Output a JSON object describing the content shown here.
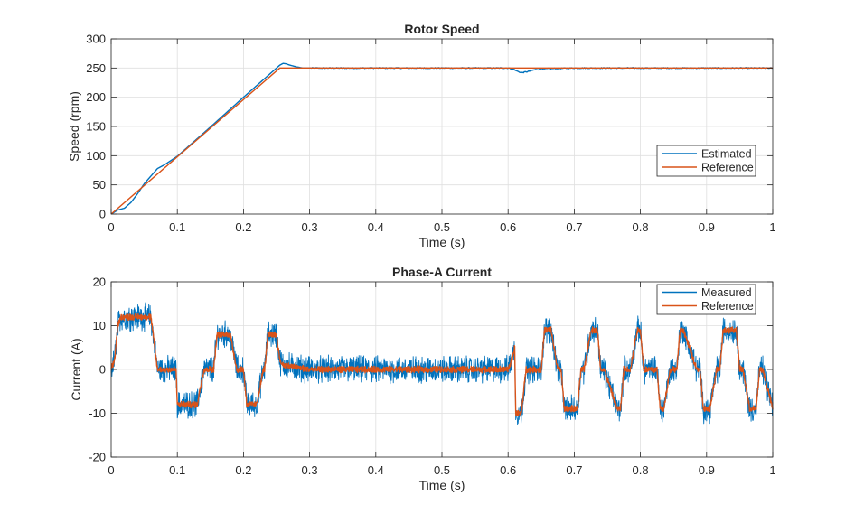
{
  "chart_data": [
    {
      "type": "line",
      "title": "Rotor Speed",
      "xlabel": "Time (s)",
      "ylabel": "Speed (rpm)",
      "xlim": [
        0,
        1
      ],
      "ylim": [
        0,
        300
      ],
      "xticks": [
        0,
        0.1,
        0.2,
        0.3,
        0.4,
        0.5,
        0.6,
        0.7,
        0.8,
        0.9,
        1
      ],
      "xtick_labels": [
        "0",
        "0.1",
        "0.2",
        "0.3",
        "0.4",
        "0.5",
        "0.6",
        "0.7",
        "0.8",
        "0.9",
        "1"
      ],
      "yticks": [
        0,
        50,
        100,
        150,
        200,
        250,
        300
      ],
      "ytick_labels": [
        "0",
        "50",
        "100",
        "150",
        "200",
        "250",
        "300"
      ],
      "grid": true,
      "legend": "right",
      "series": [
        {
          "name": "Estimated",
          "color": "#0072BD",
          "x": [
            0,
            0.01,
            0.02,
            0.03,
            0.04,
            0.05,
            0.06,
            0.07,
            0.08,
            0.1,
            0.15,
            0.2,
            0.25,
            0.255,
            0.26,
            0.265,
            0.27,
            0.28,
            0.29,
            0.3,
            0.35,
            0.4,
            0.5,
            0.6,
            0.605,
            0.61,
            0.615,
            0.62,
            0.63,
            0.64,
            0.65,
            0.66,
            0.7,
            0.8,
            0.9,
            1.0
          ],
          "y": [
            0,
            7,
            10,
            20,
            35,
            52,
            65,
            78,
            84,
            99,
            149,
            200,
            250,
            255,
            258,
            257,
            255,
            252,
            250,
            250,
            250,
            250,
            250,
            250,
            249,
            247,
            244,
            242,
            244,
            247,
            248,
            249,
            250,
            250,
            250,
            250
          ]
        },
        {
          "name": "Reference",
          "color": "#D95319",
          "x": [
            0,
            0.255,
            1.0
          ],
          "y": [
            0,
            250,
            250
          ]
        }
      ]
    },
    {
      "type": "line",
      "title": "Phase-A Current",
      "xlabel": "Time (s)",
      "ylabel": "Current (A)",
      "xlim": [
        0,
        1
      ],
      "ylim": [
        -20,
        20
      ],
      "xticks": [
        0,
        0.1,
        0.2,
        0.3,
        0.4,
        0.5,
        0.6,
        0.7,
        0.8,
        0.9,
        1
      ],
      "xtick_labels": [
        "0",
        "0.1",
        "0.2",
        "0.3",
        "0.4",
        "0.5",
        "0.6",
        "0.7",
        "0.8",
        "0.9",
        "1"
      ],
      "yticks": [
        -20,
        -10,
        0,
        10,
        20
      ],
      "ytick_labels": [
        "-20",
        "-10",
        "0",
        "10",
        "20"
      ],
      "grid": true,
      "legend": "top-right",
      "series": [
        {
          "name": "Measured",
          "color": "#0072BD",
          "noise_amplitude": 2.5,
          "x": [
            0,
            0.005,
            0.01,
            0.015,
            0.06,
            0.07,
            0.098,
            0.1,
            0.13,
            0.14,
            0.155,
            0.16,
            0.18,
            0.19,
            0.2,
            0.205,
            0.22,
            0.23,
            0.232,
            0.237,
            0.25,
            0.255,
            0.26,
            0.3,
            0.6,
            0.605,
            0.61,
            0.6115,
            0.62,
            0.627,
            0.65,
            0.655,
            0.665,
            0.675,
            0.68,
            0.685,
            0.705,
            0.71,
            0.715,
            0.725,
            0.735,
            0.74,
            0.745,
            0.765,
            0.77,
            0.775,
            0.785,
            0.795,
            0.8,
            0.805,
            0.825,
            0.83,
            0.835,
            0.845,
            0.855,
            0.86,
            0.865,
            0.885,
            0.89,
            0.895,
            0.905,
            0.915,
            0.92,
            0.925,
            0.945,
            0.95,
            0.955,
            0.965,
            0.975,
            0.98,
            0.985,
            1.0
          ],
          "y": [
            0,
            2,
            10,
            12,
            12,
            0,
            0,
            -8,
            -8,
            0,
            0,
            8,
            8,
            0,
            0,
            -8,
            -8,
            0,
            0,
            8,
            8,
            2,
            1,
            0,
            0,
            2,
            5,
            -10,
            -10,
            0,
            0,
            9,
            9,
            0,
            0,
            -9,
            -9,
            0,
            0,
            9,
            9,
            0,
            0,
            -9,
            -9,
            0,
            0,
            9,
            9,
            0,
            0,
            -9,
            -9,
            0,
            0,
            9,
            9,
            0,
            0,
            -9,
            -9,
            0,
            0,
            9,
            9,
            0,
            0,
            -9,
            -9,
            0,
            0,
            -9
          ]
        },
        {
          "name": "Reference",
          "color": "#D95319",
          "noise_amplitude": 0.6,
          "x": [
            0,
            0.005,
            0.01,
            0.015,
            0.06,
            0.07,
            0.098,
            0.1,
            0.13,
            0.14,
            0.155,
            0.16,
            0.18,
            0.19,
            0.2,
            0.205,
            0.22,
            0.23,
            0.232,
            0.237,
            0.25,
            0.255,
            0.26,
            0.3,
            0.6,
            0.605,
            0.61,
            0.6115,
            0.62,
            0.627,
            0.65,
            0.655,
            0.665,
            0.675,
            0.68,
            0.685,
            0.705,
            0.71,
            0.715,
            0.725,
            0.735,
            0.74,
            0.745,
            0.765,
            0.77,
            0.775,
            0.785,
            0.795,
            0.8,
            0.805,
            0.825,
            0.83,
            0.835,
            0.845,
            0.855,
            0.86,
            0.865,
            0.885,
            0.89,
            0.895,
            0.905,
            0.915,
            0.92,
            0.925,
            0.945,
            0.95,
            0.955,
            0.965,
            0.975,
            0.98,
            0.985,
            1.0
          ],
          "y": [
            0,
            2,
            10,
            12,
            12,
            0,
            0,
            -8,
            -8,
            0,
            0,
            8,
            8,
            0,
            0,
            -8,
            -8,
            0,
            0,
            8,
            8,
            2,
            1,
            0,
            0,
            2,
            5,
            -10,
            -10,
            0,
            0,
            9,
            9,
            0,
            0,
            -9,
            -9,
            0,
            0,
            9,
            9,
            0,
            0,
            -9,
            -9,
            0,
            0,
            9,
            9,
            0,
            0,
            -9,
            -9,
            0,
            0,
            9,
            9,
            0,
            0,
            -9,
            -9,
            0,
            0,
            9,
            9,
            0,
            0,
            -9,
            -9,
            0,
            0,
            -9
          ]
        }
      ]
    }
  ]
}
